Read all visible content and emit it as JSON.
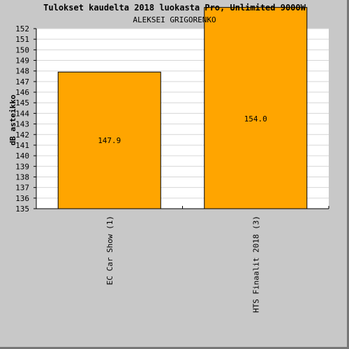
{
  "chart_data": {
    "type": "bar",
    "title": "Tulokset kaudelta 2018 luokasta Pro, Unlimited 9000W",
    "subtitle": "ALEKSEI GRIGORENKO",
    "ylabel": "dB asteikko",
    "xlabel": "",
    "categories": [
      "EC Car Show (1)",
      "HTS Finaalit 2018 (3)"
    ],
    "values": [
      147.9,
      154.0
    ],
    "value_labels": [
      "147.9",
      "154.0"
    ],
    "ylim": [
      135,
      152
    ],
    "yticks": [
      "135",
      "136",
      "137",
      "138",
      "139",
      "140",
      "141",
      "142",
      "143",
      "144",
      "145",
      "146",
      "147",
      "148",
      "149",
      "150",
      "151",
      "152"
    ],
    "grid": true,
    "legend": "none"
  },
  "colors": {
    "bar": "#ffa500",
    "bar_border": "#000000",
    "plot_bg": "#ffffff",
    "grid": "#d6d6d6",
    "frame_bg": "#c8c8c8"
  }
}
